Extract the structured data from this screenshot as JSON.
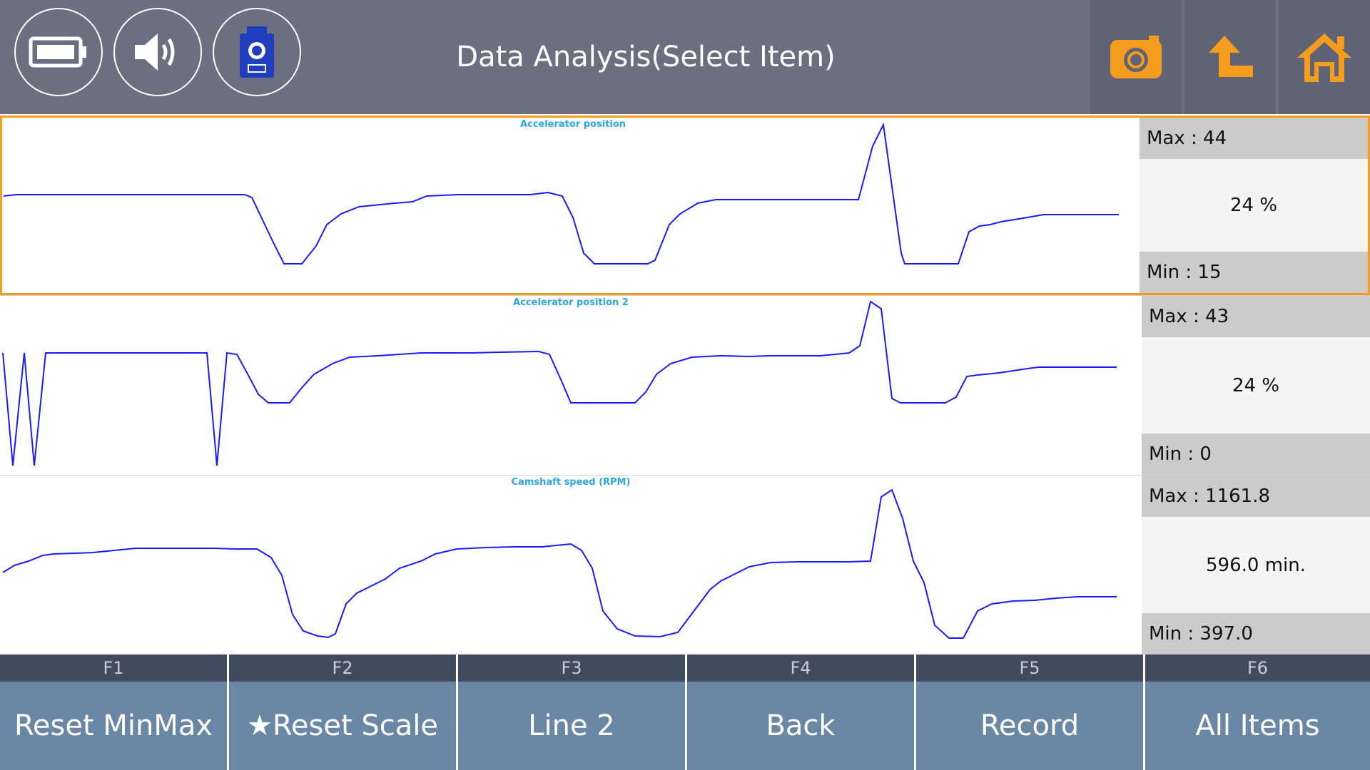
{
  "header": {
    "title": "Data Analysis(Select Item)",
    "left_icons": [
      "battery-icon",
      "speaker-icon",
      "vci-device-icon"
    ],
    "right_icons": [
      "camera-icon",
      "upload-icon",
      "home-icon"
    ],
    "accent": "#f39c1e"
  },
  "panels": [
    {
      "title": "Accelerator position",
      "max_label": "Max : 44",
      "current": "24 %",
      "min_label": "Min :    15",
      "selected": true
    },
    {
      "title": "Accelerator position 2",
      "max_label": "Max : 43",
      "current": "24 %",
      "min_label": "Min :     0",
      "selected": false
    },
    {
      "title": "Camshaft speed (RPM)",
      "max_label": "Max : 1161.8",
      "current": "596.0 min.",
      "min_label": "Min : 397.0",
      "selected": false
    }
  ],
  "fkeys": [
    {
      "num": "F1",
      "label": "Reset MinMax"
    },
    {
      "num": "F2",
      "label": "★Reset Scale"
    },
    {
      "num": "F3",
      "label": "Line 2"
    },
    {
      "num": "F4",
      "label": "Back"
    },
    {
      "num": "F5",
      "label": "Record"
    },
    {
      "num": "F6",
      "label": "All Items"
    }
  ]
}
